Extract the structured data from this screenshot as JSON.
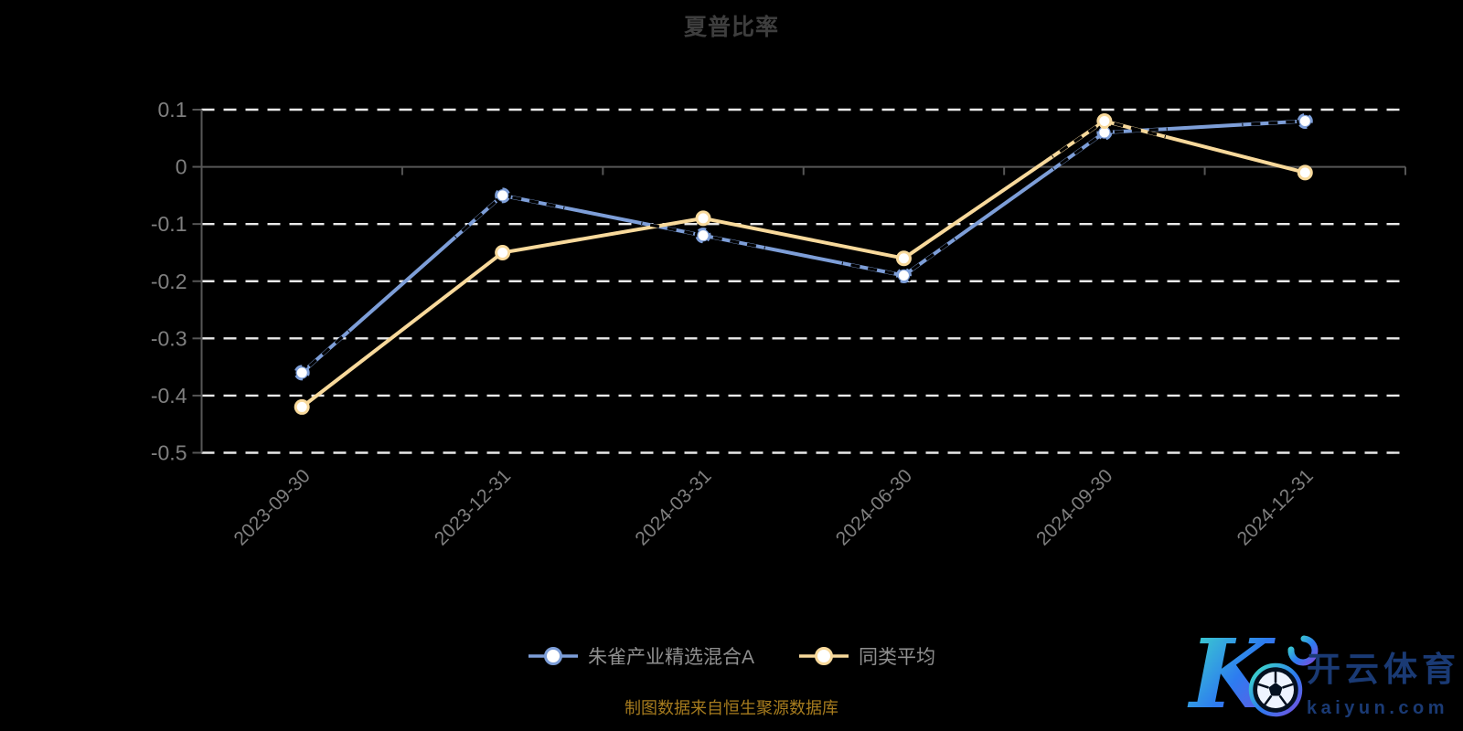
{
  "page": {
    "background": "#000000"
  },
  "header": {
    "title": "夏普比率"
  },
  "chart_data": {
    "type": "line",
    "title": "夏普比率",
    "categories": [
      "2023-09-30",
      "2023-12-31",
      "2024-03-31",
      "2024-06-30",
      "2024-09-30",
      "2024-12-31"
    ],
    "series": [
      {
        "name": "朱雀产业精选混合A",
        "color": "#7d9ed8",
        "values": [
          -0.36,
          -0.05,
          -0.12,
          -0.19,
          0.06,
          0.08
        ]
      },
      {
        "name": "同类平均",
        "color": "#f8d99b",
        "values": [
          -0.42,
          -0.15,
          -0.09,
          -0.16,
          0.08,
          -0.01
        ]
      }
    ],
    "y_axis": {
      "ticks": [
        0.1,
        0,
        -0.1,
        -0.2,
        -0.3,
        -0.4,
        -0.5
      ],
      "min": -0.5,
      "max": 0.1
    },
    "x_axis": {
      "label_rotate": 45
    },
    "grid": {
      "horizontal": true,
      "style": "dashed",
      "zero_line": "solid"
    },
    "legend_position": "bottom-center",
    "marker_style": "circle, white fill, colored ring",
    "artifacts": {
      "note": "short black dashed strokes and ring fragments overlap the lines near the data markers",
      "color": "#000000"
    }
  },
  "footer": {
    "source_note": "制图数据来自恒生聚源数据库"
  },
  "watermark": {
    "logo_letter": "K",
    "brand_cn": "开云体育",
    "brand_domain": "kaiyun.com"
  },
  "colors": {
    "background": "#000000",
    "title_text": "#3e3e3e",
    "axis_label": "#7f7f7f",
    "axis_line": "#565656",
    "gridline": "#e9e9e9",
    "legend_text": "#8f8f8f",
    "footer_text": "#a77c1e",
    "marker_fill": "#ffffff",
    "artifact_black": "#000000",
    "watermark_navy": "#1a3a74",
    "watermark_teal": "#3fe5c4",
    "watermark_blue": "#2d7bf0",
    "watermark_purple": "#7a4fe0"
  }
}
